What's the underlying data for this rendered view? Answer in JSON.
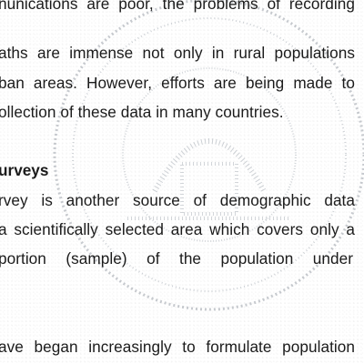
{
  "paragraph1": {
    "lines": [
      "nunications are poor, the problems of recording",
      "aths are immense not only in rural populations",
      "ban areas. However, efforts are being made to",
      "ollection of these data in many countries."
    ]
  },
  "section": {
    "heading": "urveys",
    "lines": [
      "rvey is another source of demographic data",
      "a scientifically selected area which covers only a",
      "portion (sample) of the population under"
    ]
  },
  "paragraph3": {
    "lines": [
      "ave began increasingly to formulate population"
    ]
  },
  "colors": {
    "text": "#1b1b1b",
    "watermark": "#9aa0a8",
    "background": "#ffffff"
  }
}
